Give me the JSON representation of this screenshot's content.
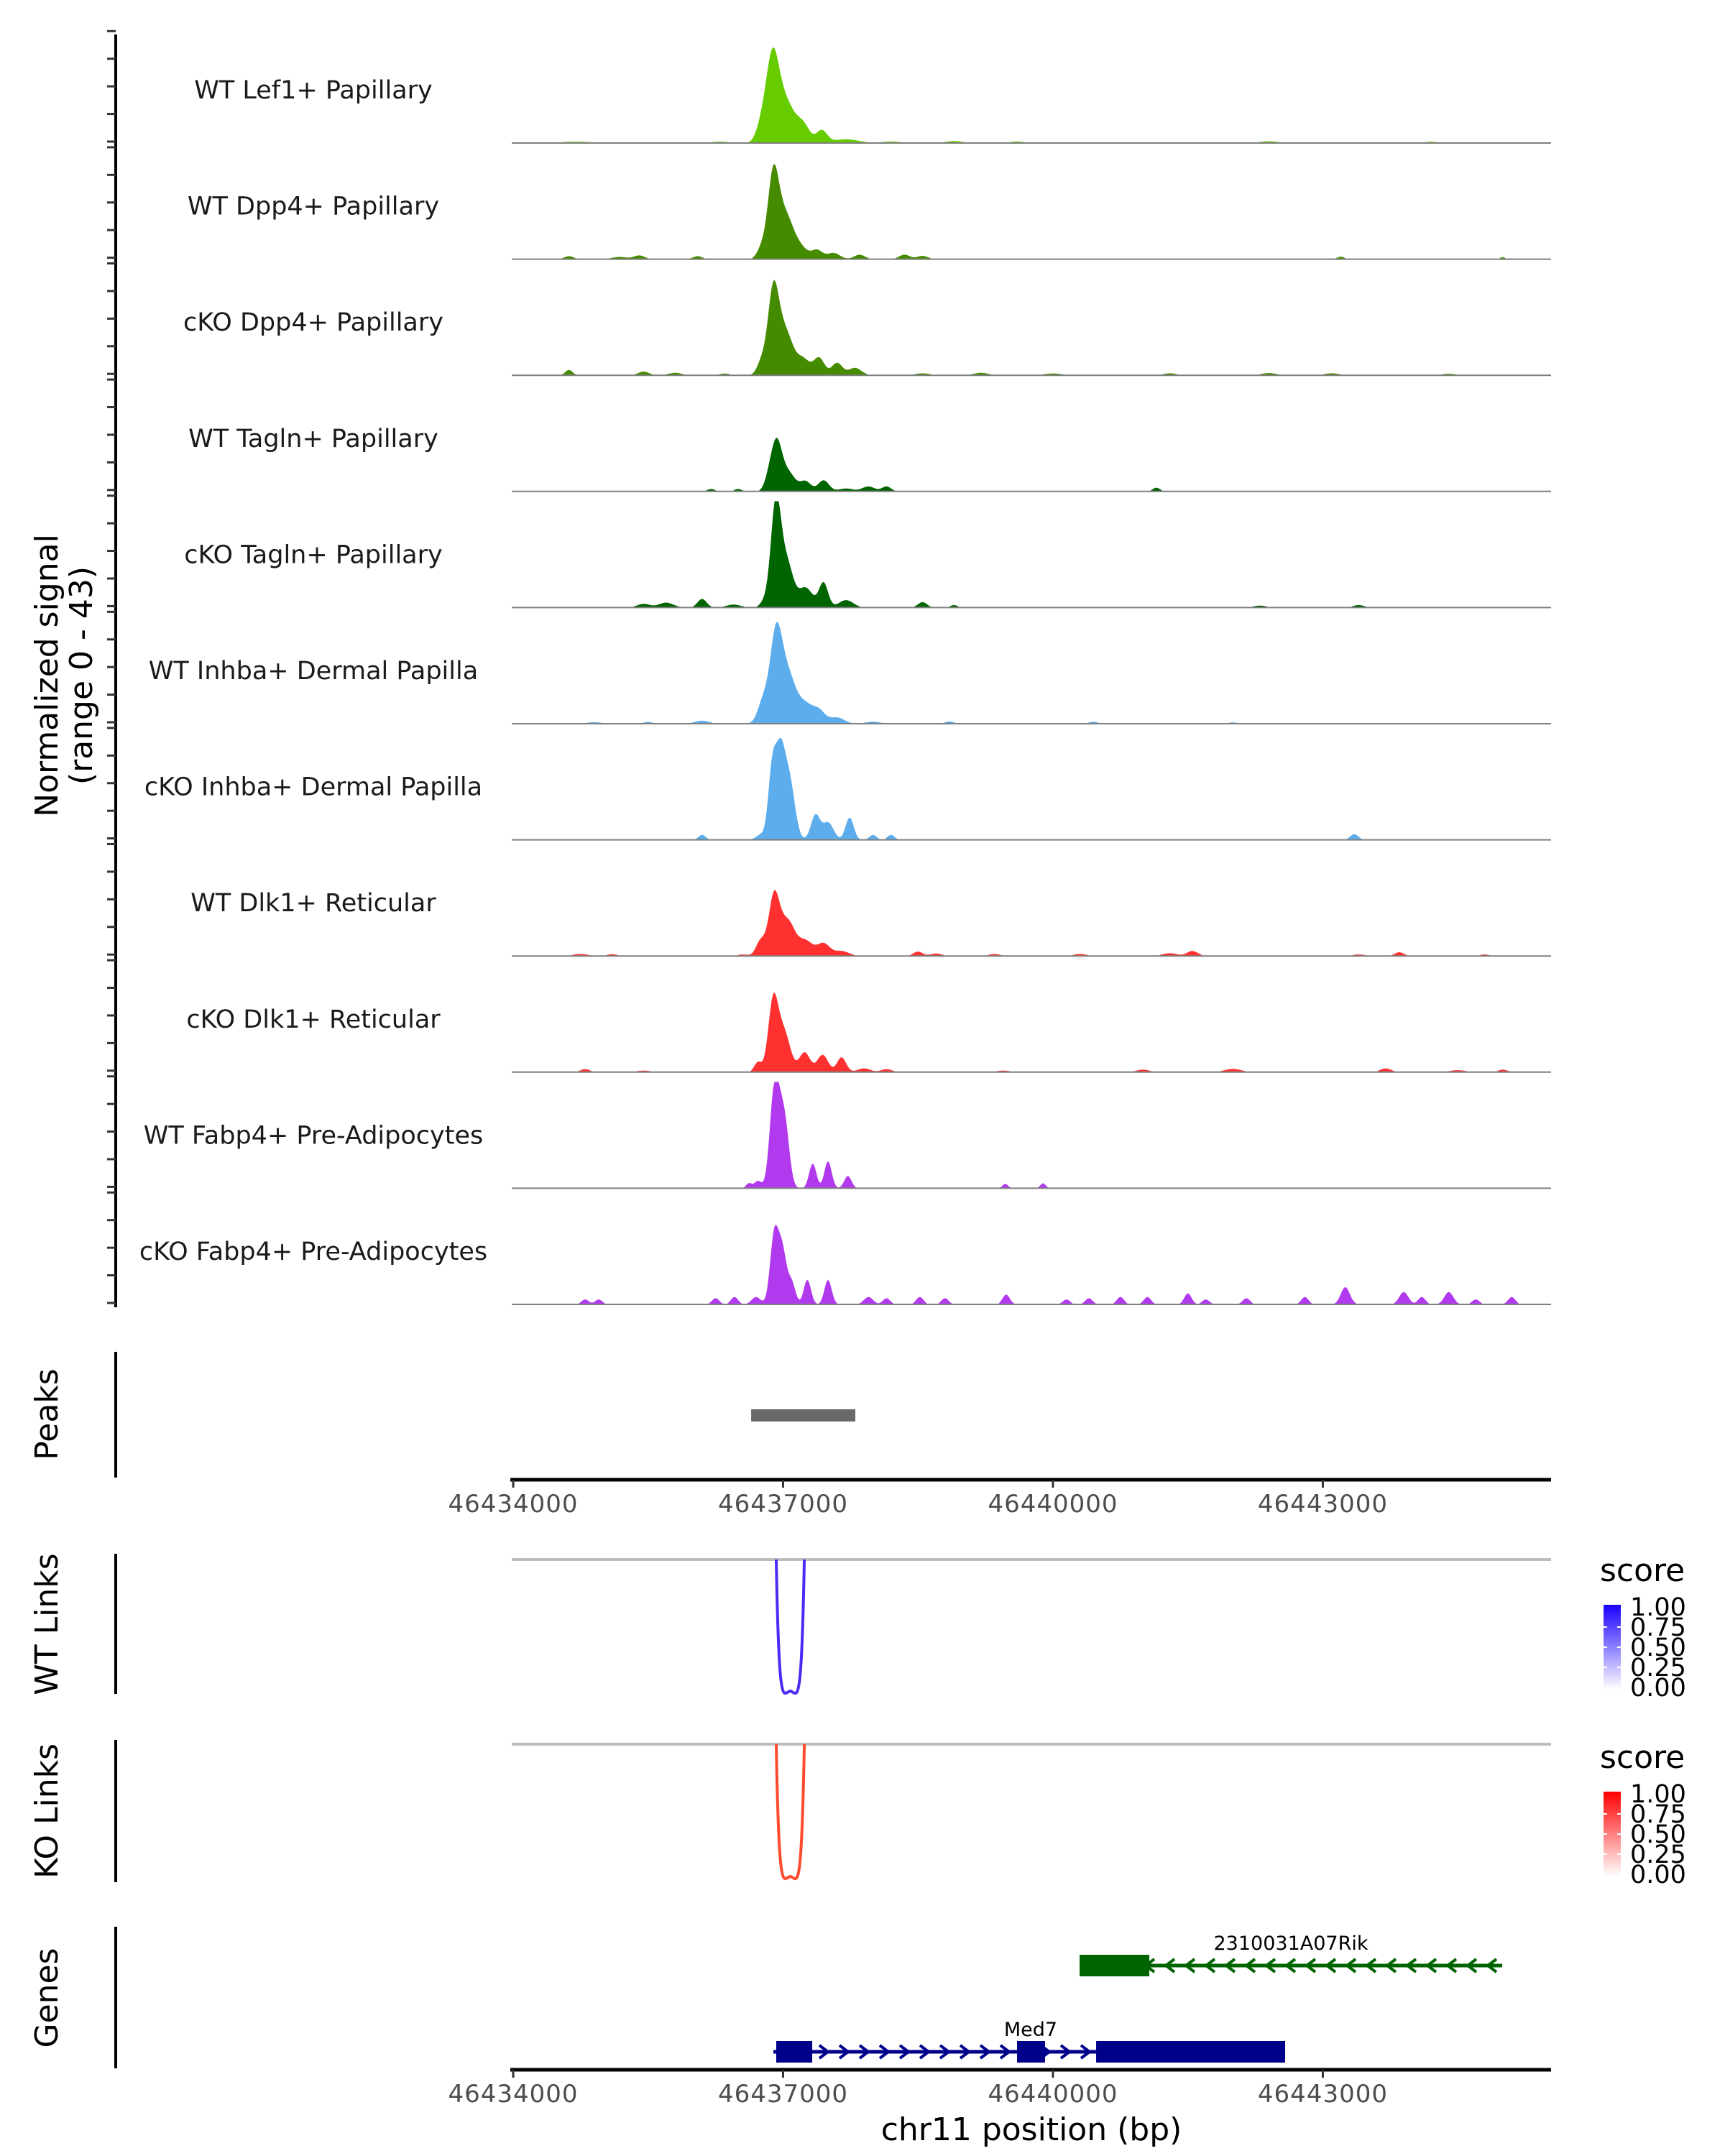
{
  "chart_data": {
    "type": "area",
    "title": "",
    "chromosome": "chr11",
    "xlabel": "chr11 position (bp)",
    "xlim": [
      46433984,
      46445537
    ],
    "xticks": [
      46434000,
      46437000,
      46440000,
      46443000
    ],
    "xtick_labels": [
      "46434000",
      "46437000",
      "46440000",
      "46443000"
    ],
    "coverage": {
      "ylabel_line1": "Normalized signal",
      "ylabel_line2": "(range 0 - 43)",
      "ylim": [
        0,
        43
      ],
      "tracks": [
        {
          "name": "WT Lef1+ Papillary",
          "color": "#66CC00",
          "components": [
            [
              46436760,
              6,
              60
            ],
            [
              46436880,
              30,
              70
            ],
            [
              46437020,
              17,
              110
            ],
            [
              46437230,
              6,
              70
            ],
            [
              46437430,
              5,
              60
            ],
            [
              46437700,
              1.5,
              140
            ],
            [
              46438200,
              0.6,
              100
            ],
            [
              46438900,
              0.8,
              90
            ],
            [
              46439600,
              0.6,
              80
            ],
            [
              46442400,
              0.7,
              100
            ],
            [
              46444200,
              0.5,
              80
            ],
            [
              46434700,
              0.5,
              200
            ],
            [
              46436300,
              0.5,
              120
            ]
          ]
        },
        {
          "name": "WT Dpp4+ Papillary",
          "color": "#458B00",
          "components": [
            [
              46436760,
              4,
              50
            ],
            [
              46436890,
              31.5,
              60
            ],
            [
              46437020,
              18,
              90
            ],
            [
              46437200,
              4,
              80
            ],
            [
              46437380,
              3.5,
              60
            ],
            [
              46437560,
              2.5,
              70
            ],
            [
              46437850,
              1.8,
              60
            ],
            [
              46438350,
              1.8,
              60
            ],
            [
              46438550,
              1.3,
              60
            ],
            [
              46434620,
              1.2,
              50
            ],
            [
              46435400,
              1.5,
              60
            ],
            [
              46435180,
              0.9,
              80
            ],
            [
              46436050,
              1.2,
              50
            ],
            [
              46443200,
              1,
              40
            ],
            [
              46445000,
              0.8,
              30
            ]
          ]
        },
        {
          "name": "cKO Dpp4+ Papillary",
          "color": "#458B00",
          "components": [
            [
              46436760,
              5,
              50
            ],
            [
              46436890,
              31.5,
              60
            ],
            [
              46437020,
              18,
              90
            ],
            [
              46437230,
              6,
              70
            ],
            [
              46437400,
              7,
              60
            ],
            [
              46437600,
              5,
              60
            ],
            [
              46437800,
              3,
              70
            ],
            [
              46434620,
              2.2,
              40
            ],
            [
              46435450,
              1.5,
              60
            ],
            [
              46435800,
              1,
              70
            ],
            [
              46436350,
              0.7,
              60
            ],
            [
              46438550,
              0.8,
              80
            ],
            [
              46439200,
              1,
              80
            ],
            [
              46440000,
              0.7,
              100
            ],
            [
              46441300,
              0.8,
              70
            ],
            [
              46442400,
              0.9,
              80
            ],
            [
              46443100,
              0.8,
              80
            ],
            [
              46444400,
              0.6,
              80
            ]
          ]
        },
        {
          "name": "WT Tagln+ Papillary",
          "color": "#006400",
          "components": [
            [
              46436200,
              1,
              40
            ],
            [
              46436500,
              1,
              40
            ],
            [
              46436850,
              6,
              50
            ],
            [
              46436930,
              17.5,
              55
            ],
            [
              46437050,
              8,
              80
            ],
            [
              46437250,
              4,
              60
            ],
            [
              46437450,
              4.5,
              60
            ],
            [
              46437700,
              1.2,
              80
            ],
            [
              46437950,
              2,
              70
            ],
            [
              46438150,
              2,
              50
            ],
            [
              46441150,
              1.5,
              40
            ]
          ]
        },
        {
          "name": "cKO Tagln+ Papillary",
          "color": "#006400",
          "components": [
            [
              46436800,
              2.5,
              50
            ],
            [
              46436920,
              41.6,
              55
            ],
            [
              46437040,
              18,
              70
            ],
            [
              46437250,
              8,
              80
            ],
            [
              46437450,
              10,
              50
            ],
            [
              46437700,
              3,
              80
            ],
            [
              46435450,
              1.5,
              70
            ],
            [
              46435700,
              2,
              80
            ],
            [
              46436100,
              3.5,
              50
            ],
            [
              46436450,
              1.2,
              80
            ],
            [
              46438550,
              2.2,
              50
            ],
            [
              46438900,
              1,
              40
            ],
            [
              46442300,
              0.8,
              70
            ],
            [
              46443400,
              1,
              60
            ]
          ]
        },
        {
          "name": "WT Inhba+ Dermal Papilla",
          "color": "#5DADEC",
          "components": [
            [
              46436780,
              9,
              60
            ],
            [
              46436920,
              33,
              65
            ],
            [
              46437050,
              20,
              90
            ],
            [
              46437250,
              7,
              80
            ],
            [
              46437400,
              5,
              70
            ],
            [
              46437600,
              2.5,
              80
            ],
            [
              46436100,
              1.2,
              80
            ],
            [
              46434900,
              0.6,
              80
            ],
            [
              46435500,
              0.7,
              60
            ],
            [
              46438000,
              0.8,
              80
            ],
            [
              46438850,
              0.9,
              50
            ],
            [
              46440450,
              0.8,
              50
            ],
            [
              46442000,
              0.5,
              60
            ]
          ]
        },
        {
          "name": "cKO Inhba+ Dermal Papilla",
          "color": "#5DADEC",
          "components": [
            [
              46436880,
              28,
              45
            ],
            [
              46436970,
              31.5,
              50
            ],
            [
              46437070,
              24,
              60
            ],
            [
              46437360,
              10,
              50
            ],
            [
              46437500,
              7,
              60
            ],
            [
              46437740,
              9,
              45
            ],
            [
              46436100,
              2,
              40
            ],
            [
              46436750,
              2,
              50
            ],
            [
              46438000,
              2,
              40
            ],
            [
              46438200,
              2,
              40
            ],
            [
              46443350,
              2.3,
              45
            ]
          ]
        },
        {
          "name": "WT Dlk1+ Reticular",
          "color": "#FF3030",
          "components": [
            [
              46436750,
              6,
              50
            ],
            [
              46436900,
              24,
              60
            ],
            [
              46437050,
              14,
              80
            ],
            [
              46437250,
              6,
              80
            ],
            [
              46437450,
              5,
              70
            ],
            [
              46437650,
              2,
              80
            ],
            [
              46434750,
              0.8,
              80
            ],
            [
              46435100,
              0.7,
              60
            ],
            [
              46436550,
              0.6,
              60
            ],
            [
              46438500,
              1.8,
              50
            ],
            [
              46438700,
              1,
              60
            ],
            [
              46439350,
              0.8,
              60
            ],
            [
              46440300,
              0.8,
              70
            ],
            [
              46441300,
              1.1,
              80
            ],
            [
              46441550,
              2,
              60
            ],
            [
              46443400,
              0.6,
              70
            ],
            [
              46443850,
              1.5,
              50
            ],
            [
              46444800,
              0.6,
              50
            ]
          ]
        },
        {
          "name": "cKO Dlk1+ Reticular",
          "color": "#FF3030",
          "components": [
            [
              46436720,
              4,
              40
            ],
            [
              46436890,
              28,
              55
            ],
            [
              46437010,
              16,
              70
            ],
            [
              46437240,
              8,
              60
            ],
            [
              46437440,
              7,
              60
            ],
            [
              46437650,
              6,
              50
            ],
            [
              46437900,
              1.5,
              70
            ],
            [
              46438150,
              1.2,
              60
            ],
            [
              46434800,
              1.2,
              50
            ],
            [
              46435450,
              0.6,
              80
            ],
            [
              46439450,
              0.6,
              80
            ],
            [
              46441000,
              1,
              70
            ],
            [
              46442000,
              1.3,
              90
            ],
            [
              46443700,
              1.5,
              60
            ],
            [
              46444500,
              0.8,
              80
            ],
            [
              46445000,
              1,
              50
            ]
          ]
        },
        {
          "name": "WT Fabp4+ Pre-Adipocytes",
          "color": "#B23AEE",
          "components": [
            [
              46436720,
              3,
              40
            ],
            [
              46436880,
              18,
              45
            ],
            [
              46436930,
              31,
              50
            ],
            [
              46437020,
              25,
              50
            ],
            [
              46437330,
              10,
              40
            ],
            [
              46437500,
              11,
              40
            ],
            [
              46437720,
              5,
              40
            ],
            [
              46436620,
              2,
              30
            ],
            [
              46439470,
              1.8,
              30
            ],
            [
              46439890,
              2,
              30
            ]
          ]
        },
        {
          "name": "cKO Fabp4+ Pre-Adipocytes",
          "color": "#B23AEE",
          "components": [
            [
              46436700,
              3,
              50
            ],
            [
              46436900,
              26.5,
              45
            ],
            [
              46436990,
              22,
              50
            ],
            [
              46437100,
              8,
              40
            ],
            [
              46437270,
              10,
              40
            ],
            [
              46437500,
              10,
              40
            ],
            [
              46436460,
              3,
              40
            ],
            [
              46436250,
              2.5,
              40
            ],
            [
              46434800,
              2,
              40
            ],
            [
              46434950,
              2,
              40
            ],
            [
              46437950,
              3,
              50
            ],
            [
              46438150,
              2.5,
              40
            ],
            [
              46438520,
              3,
              40
            ],
            [
              46438800,
              2.5,
              40
            ],
            [
              46439480,
              4,
              40
            ],
            [
              46440150,
              2,
              40
            ],
            [
              46440400,
              2.5,
              40
            ],
            [
              46440750,
              3,
              40
            ],
            [
              46441050,
              3,
              40
            ],
            [
              46441500,
              4.5,
              40
            ],
            [
              46441700,
              2,
              40
            ],
            [
              46442150,
              2.5,
              40
            ],
            [
              46442800,
              3,
              40
            ],
            [
              46443250,
              7,
              50
            ],
            [
              46443900,
              5,
              50
            ],
            [
              46444100,
              3,
              40
            ],
            [
              46444400,
              5,
              50
            ],
            [
              46444700,
              2,
              40
            ],
            [
              46445100,
              3,
              40
            ]
          ]
        }
      ]
    },
    "peaks": {
      "label": "Peaks",
      "color": "#696969",
      "regions": [
        [
          46436645,
          46437803
        ]
      ]
    },
    "links": [
      {
        "label": "WT Links",
        "color": "#4E29F5",
        "baseline_color": "#BEBEBE",
        "arcs": [
          {
            "start": 46436924,
            "end": 46437236,
            "score": 0.9
          }
        ],
        "legend": {
          "title": "score",
          "low_color": "#FFFFFF",
          "high_color": "#1A00FF",
          "breaks": [
            "1.00",
            "0.75",
            "0.50",
            "0.25",
            "0.00"
          ]
        }
      },
      {
        "label": "KO Links",
        "color": "#FF4B2E",
        "baseline_color": "#BEBEBE",
        "arcs": [
          {
            "start": 46436924,
            "end": 46437236,
            "score": 0.9
          }
        ],
        "legend": {
          "title": "score",
          "low_color": "#FFFFFF",
          "high_color": "#FF0000",
          "breaks": [
            "1.00",
            "0.75",
            "0.50",
            "0.25",
            "0.00"
          ]
        }
      }
    ],
    "genes": {
      "label": "Genes",
      "items": [
        {
          "name": "2310031A07Rik",
          "strand": "-",
          "color": "#006400",
          "row": 0,
          "start": 46440296,
          "end": 46444994,
          "exons": [
            [
              46440296,
              46441071
            ]
          ]
        },
        {
          "name": "Med7",
          "strand": "+",
          "color": "#00008B",
          "row": 1,
          "start": 46436892,
          "end": 46442581,
          "exons": [
            [
              46436924,
              46437324
            ],
            [
              46439601,
              46439912
            ],
            [
              46440480,
              46442581
            ]
          ]
        }
      ]
    }
  }
}
